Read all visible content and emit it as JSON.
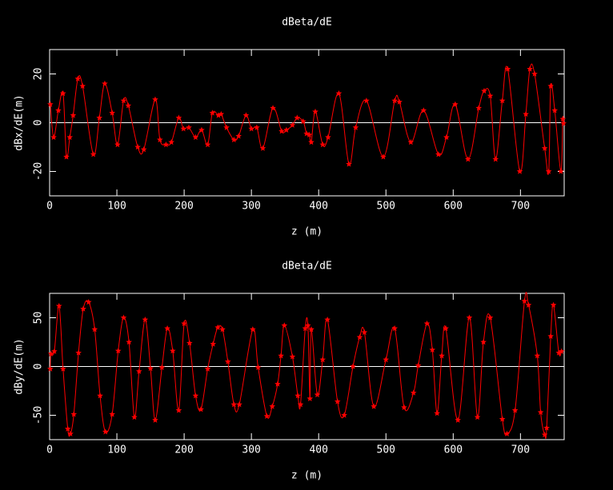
{
  "chart_data": [
    {
      "type": "line",
      "title": "dBeta/dE",
      "xlabel": "z (m)",
      "ylabel": "dBx/dE(m)",
      "color": "#ff0000",
      "marker": "star",
      "xlim": [
        0,
        765
      ],
      "ylim": [
        -30,
        30
      ],
      "xticks": [
        0,
        100,
        200,
        300,
        400,
        500,
        600,
        700
      ],
      "yticks": [
        -20,
        0,
        20
      ],
      "x": [
        1,
        6,
        13,
        20,
        25,
        30,
        35,
        42,
        49,
        65,
        74,
        82,
        93,
        101,
        110,
        117,
        131,
        140,
        157,
        164,
        173,
        181,
        192,
        199,
        207,
        217,
        226,
        235,
        242,
        251,
        255,
        263,
        274,
        281,
        292,
        300,
        308,
        317,
        332,
        345,
        352,
        361,
        368,
        377,
        382,
        386,
        389,
        395,
        406,
        414,
        430,
        445,
        455,
        471,
        496,
        513,
        520,
        537,
        556,
        578,
        590,
        603,
        622,
        638,
        646,
        655,
        663,
        673,
        681,
        699,
        708,
        714,
        721,
        736,
        742,
        745,
        751,
        760,
        763,
        764
      ],
      "values": [
        7.5,
        -6,
        5,
        12,
        -14,
        -6,
        3,
        18,
        15,
        -13,
        2,
        16,
        4,
        -9,
        9,
        7,
        -10,
        -11,
        9.5,
        -7,
        -9,
        -8,
        2,
        -2.5,
        -2,
        -6,
        -3,
        -9,
        4,
        3,
        3.5,
        -2,
        -7,
        -5.5,
        3,
        -2.5,
        -2,
        -10.5,
        6,
        -3.5,
        -3,
        -1,
        2,
        0.5,
        -4.5,
        -5,
        -8,
        4.5,
        -9,
        -6,
        12,
        -17,
        -2,
        9,
        -14,
        9,
        8.5,
        -8,
        5,
        -13,
        -6,
        7.5,
        -15,
        6,
        13,
        11,
        -15,
        9,
        22,
        -20,
        3.5,
        22,
        20,
        -10.5,
        -20,
        15,
        5,
        -20,
        1.5,
        -0.3
      ]
    },
    {
      "type": "line",
      "title": "dBeta/dE",
      "xlabel": "z (m)",
      "ylabel": "dBy/dE(m)",
      "color": "#ff0000",
      "marker": "star",
      "xlim": [
        0,
        765
      ],
      "ylim": [
        -75,
        75
      ],
      "xticks": [
        0,
        100,
        200,
        300,
        400,
        500,
        600,
        700
      ],
      "yticks": [
        -50,
        0,
        50
      ],
      "x": [
        1,
        2,
        7,
        14,
        20,
        27,
        31,
        36,
        43,
        50,
        58,
        67,
        75,
        83,
        93,
        102,
        110,
        118,
        126,
        133,
        142,
        150,
        157,
        167,
        175,
        183,
        192,
        200,
        208,
        217,
        225,
        235,
        243,
        250,
        257,
        265,
        274,
        282,
        302,
        310,
        323,
        331,
        339,
        344,
        349,
        361,
        369,
        373,
        380,
        384,
        387,
        389,
        398,
        406,
        413,
        428,
        438,
        451,
        461,
        468,
        482,
        500,
        513,
        527,
        541,
        548,
        561,
        569,
        576,
        583,
        589,
        607,
        624,
        636,
        645,
        655,
        673,
        680,
        692,
        706,
        712,
        725,
        730,
        736,
        739,
        745,
        749,
        757,
        761
      ],
      "values": [
        -2.5,
        13,
        15.5,
        62,
        -2.5,
        -64,
        -69,
        -49,
        14,
        59,
        66,
        38,
        -30,
        -67,
        -49,
        16,
        50,
        25,
        -52,
        -5,
        48,
        -2,
        -55,
        -1,
        39,
        16,
        -45,
        44,
        24,
        -30,
        -44,
        -2.5,
        23,
        40,
        38,
        5,
        -39,
        -39,
        38,
        -1,
        -51,
        -41,
        -18,
        11,
        42,
        10,
        -30,
        -39,
        39,
        42,
        -33,
        38,
        -29,
        7,
        48,
        -36,
        -50,
        0,
        30,
        35,
        -41,
        7,
        39,
        -42,
        -27,
        1,
        44,
        17,
        -48,
        11,
        39,
        -55,
        50,
        -52,
        25,
        50,
        -54,
        -69,
        -45,
        67,
        63,
        11,
        -47,
        -70,
        -63,
        31,
        63,
        14,
        15.5
      ]
    }
  ]
}
